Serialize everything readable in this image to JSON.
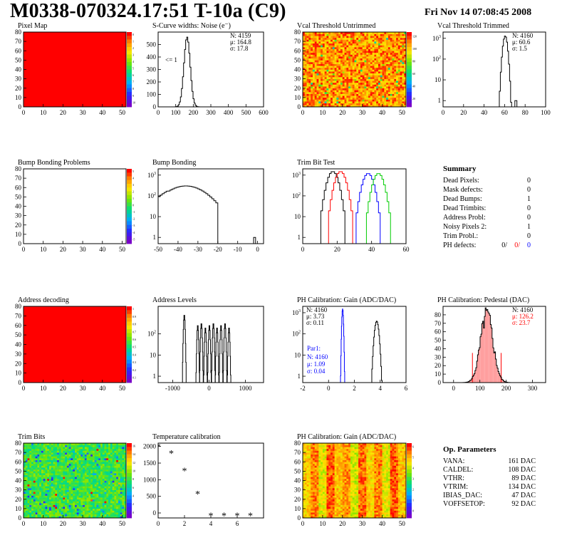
{
  "header": {
    "title": "M0338-070324.17:51 T-10a (C9)",
    "date": "Fri Nov 14 07:08:45 2008"
  },
  "summary": {
    "title": "Summary",
    "rows": [
      {
        "label": "Dead Pixels:",
        "value": "0"
      },
      {
        "label": "Mask defects:",
        "value": "0"
      },
      {
        "label": "Dead Bumps:",
        "value": "1"
      },
      {
        "label": "Dead Trimbits:",
        "value": "0"
      },
      {
        "label": "Address Probl:",
        "value": "0"
      },
      {
        "label": "Noisy Pixels 2:",
        "value": "1"
      },
      {
        "label": "Trim Probl.:",
        "value": "0"
      }
    ],
    "ph_defects": {
      "label": "PH defects:",
      "v1": "0/",
      "v2": "0/",
      "v3": "0"
    }
  },
  "op_params": {
    "title": "Op. Parameters",
    "rows": [
      {
        "label": "VANA:",
        "value": "161 DAC"
      },
      {
        "label": "CALDEL:",
        "value": "108 DAC"
      },
      {
        "label": "VTHR:",
        "value": "89 DAC"
      },
      {
        "label": "VTRIM:",
        "value": "134 DAC"
      },
      {
        "label": "IBIAS_DAC:",
        "value": "47 DAC"
      },
      {
        "label": "VOFFSETOP:",
        "value": "92 DAC"
      }
    ]
  },
  "colors": {
    "red": "#ff0000",
    "blue": "#0000ff",
    "green": "#00cc00",
    "black": "#000000"
  },
  "chart_data": [
    {
      "id": "pixel-map",
      "type": "heatmap",
      "title": "Pixel Map",
      "fill": "uniform-max",
      "xlim": [
        0,
        52
      ],
      "ylim": [
        0,
        80
      ],
      "xticks": [
        0,
        10,
        20,
        30,
        40,
        50
      ],
      "yticks": [
        0,
        10,
        20,
        30,
        40,
        50,
        60,
        70,
        80
      ],
      "zticks": [
        "0",
        "1",
        "2",
        "3",
        "4",
        "5",
        "6",
        "7",
        "8",
        "9",
        "10"
      ]
    },
    {
      "id": "scurve-noise",
      "type": "line",
      "title": "S-Curve widths: Noise (e⁻)",
      "xlim": [
        0,
        600
      ],
      "ylim": [
        0,
        600
      ],
      "xticks": [
        0,
        100,
        200,
        300,
        400,
        500,
        600
      ],
      "yticks": [
        0,
        100,
        200,
        300,
        400,
        500
      ],
      "stats": {
        "n": "N: 4159",
        "mu": "μ: 164.8",
        "sigma": "σ: 17.8"
      },
      "annotation": "<= 1",
      "peak": {
        "mean": 164.8,
        "sigma": 17.8,
        "height": 560
      }
    },
    {
      "id": "vcal-untrimmed",
      "type": "heatmap",
      "title": "Vcal Threshold Untrimmed",
      "fill": "noisy-warm",
      "xlim": [
        0,
        52
      ],
      "ylim": [
        0,
        80
      ],
      "xticks": [
        0,
        10,
        20,
        30,
        40,
        50
      ],
      "yticks": [
        0,
        10,
        20,
        30,
        40,
        50,
        60,
        70,
        80
      ],
      "zticks": [
        "120",
        "100",
        "80",
        "60",
        "40",
        "20"
      ]
    },
    {
      "id": "vcal-trimmed",
      "type": "line",
      "title": "Vcal Threshold Trimmed",
      "log": true,
      "xlim": [
        0,
        100
      ],
      "ylim": [
        0.5,
        2000
      ],
      "xticks": [
        0,
        20,
        40,
        60,
        80,
        100
      ],
      "yticks": [
        1,
        10,
        100,
        1000
      ],
      "stats": {
        "n": "N: 4160",
        "mu": "μ: 60.6",
        "sigma": "σ:  1.5"
      },
      "peak": {
        "mean": 60.6,
        "sigma": 1.5,
        "height": 1300
      }
    },
    {
      "id": "bump-bonding-problems",
      "type": "heatmap",
      "title": "Bump Bonding Problems",
      "fill": "empty",
      "xlim": [
        0,
        52
      ],
      "ylim": [
        0,
        80
      ],
      "xticks": [
        0,
        10,
        20,
        30,
        40,
        50
      ],
      "yticks": [
        0,
        10,
        20,
        30,
        40,
        50,
        60,
        70,
        80
      ],
      "zticks": [
        "5",
        "4",
        "3",
        "2",
        "1",
        "0",
        "-1",
        "-2",
        "-3",
        "-4",
        "-5"
      ]
    },
    {
      "id": "bump-bonding",
      "type": "line",
      "title": "Bump Bonding",
      "log": true,
      "xlim": [
        -50,
        3
      ],
      "ylim": [
        0.5,
        2000
      ],
      "xticks": [
        -50,
        -40,
        -30,
        -20,
        -10,
        0
      ],
      "yticks": [
        1,
        10,
        100,
        1000
      ]
    },
    {
      "id": "trim-bit-test",
      "type": "line",
      "title": "Trim Bit Test",
      "log": true,
      "xlim": [
        0,
        60
      ],
      "ylim": [
        0.5,
        2000
      ],
      "xticks": [
        0,
        20,
        40,
        60
      ],
      "yticks": [
        1,
        10,
        100,
        1000
      ],
      "series": [
        {
          "color": "black",
          "mean": 17.5
        },
        {
          "color": "red",
          "mean": 22
        },
        {
          "color": "blue",
          "mean": 38
        },
        {
          "color": "green",
          "mean": 44
        }
      ]
    },
    {
      "id": "address-decoding",
      "type": "heatmap",
      "title": "Address decoding",
      "fill": "uniform-max",
      "xlim": [
        0,
        52
      ],
      "ylim": [
        0,
        80
      ],
      "xticks": [
        0,
        10,
        20,
        30,
        40,
        50
      ],
      "yticks": [
        0,
        10,
        20,
        30,
        40,
        50,
        60,
        70,
        80
      ],
      "zticks": [
        "1",
        "0.9",
        "0.8",
        "0.7",
        "0.6",
        "0.5",
        "0.4",
        "0.3",
        "0.2",
        "0.1"
      ]
    },
    {
      "id": "address-levels",
      "type": "line",
      "title": "Address Levels",
      "log": true,
      "xlim": [
        -1400,
        1500
      ],
      "ylim": [
        0.5,
        2000
      ],
      "xticks": [
        -1000,
        0,
        1000
      ],
      "yticks": [
        1,
        10,
        100
      ],
      "peaks": [
        -680,
        -310,
        -210,
        -100,
        10,
        120,
        220,
        330,
        440,
        550
      ]
    },
    {
      "id": "ph-gain",
      "type": "line",
      "title": "PH Calibration: Gain (ADC/DAC)",
      "log": true,
      "xlim": [
        -2,
        6
      ],
      "ylim": [
        0.5,
        2000
      ],
      "xticks": [
        -2,
        0,
        2,
        4,
        6
      ],
      "yticks": [
        1,
        10,
        100,
        1000
      ],
      "stats": {
        "n": "N: 4160",
        "mu": "μ: 3.73",
        "sigma": "σ: 0.11"
      },
      "stats2": {
        "title": "Par1:",
        "n": "N: 4160",
        "mu": "μ: 1.09",
        "sigma": "σ: 0.04"
      }
    },
    {
      "id": "ph-pedestal",
      "type": "line",
      "title": "PH Calibration: Pedestal (DAC)",
      "xlim": [
        -40,
        350
      ],
      "ylim": [
        0,
        90
      ],
      "xticks": [
        0,
        100,
        200,
        300
      ],
      "yticks": [
        0,
        10,
        20,
        30,
        40,
        50,
        60,
        70,
        80
      ],
      "stats": {
        "n": "N: 4160",
        "mu": "μ: 126.2",
        "sigma": "σ: 23.7"
      },
      "peak": {
        "mean": 126.2,
        "sigma": 23.7,
        "height": 80
      }
    },
    {
      "id": "trim-bits",
      "type": "heatmap",
      "title": "Trim Bits",
      "fill": "noisy-cool",
      "xlim": [
        0,
        52
      ],
      "ylim": [
        0,
        80
      ],
      "xticks": [
        0,
        10,
        20,
        30,
        40,
        50
      ],
      "yticks": [
        0,
        10,
        20,
        30,
        40,
        50,
        60,
        70,
        80
      ],
      "zticks": [
        "16",
        "14",
        "12",
        "10",
        "8",
        "6",
        "4",
        "2",
        "0"
      ]
    },
    {
      "id": "temperature-calibration",
      "type": "scatter",
      "title": "Temperature calibration",
      "xlim": [
        0,
        8
      ],
      "ylim": [
        -150,
        2100
      ],
      "xticks": [
        0,
        2,
        4,
        6
      ],
      "yticks": [
        0,
        500,
        1000,
        1500,
        2000
      ],
      "x": [
        0,
        1,
        2,
        3,
        4,
        5,
        6,
        7
      ],
      "y": [
        2000,
        1800,
        1280,
        580,
        -70,
        -70,
        -70,
        -70
      ]
    },
    {
      "id": "ph-gain-map",
      "type": "heatmap",
      "title": "PH Calibration: Gain (ADC/DAC)",
      "fill": "column-stripes",
      "xlim": [
        0,
        52
      ],
      "ylim": [
        0,
        80
      ],
      "xticks": [
        0,
        10,
        20,
        30,
        40,
        50
      ],
      "yticks": [
        0,
        10,
        20,
        30,
        40,
        50,
        60,
        70,
        80
      ],
      "zticks": [
        "6",
        "5",
        "4",
        "3",
        "2",
        "1",
        "0"
      ]
    }
  ]
}
